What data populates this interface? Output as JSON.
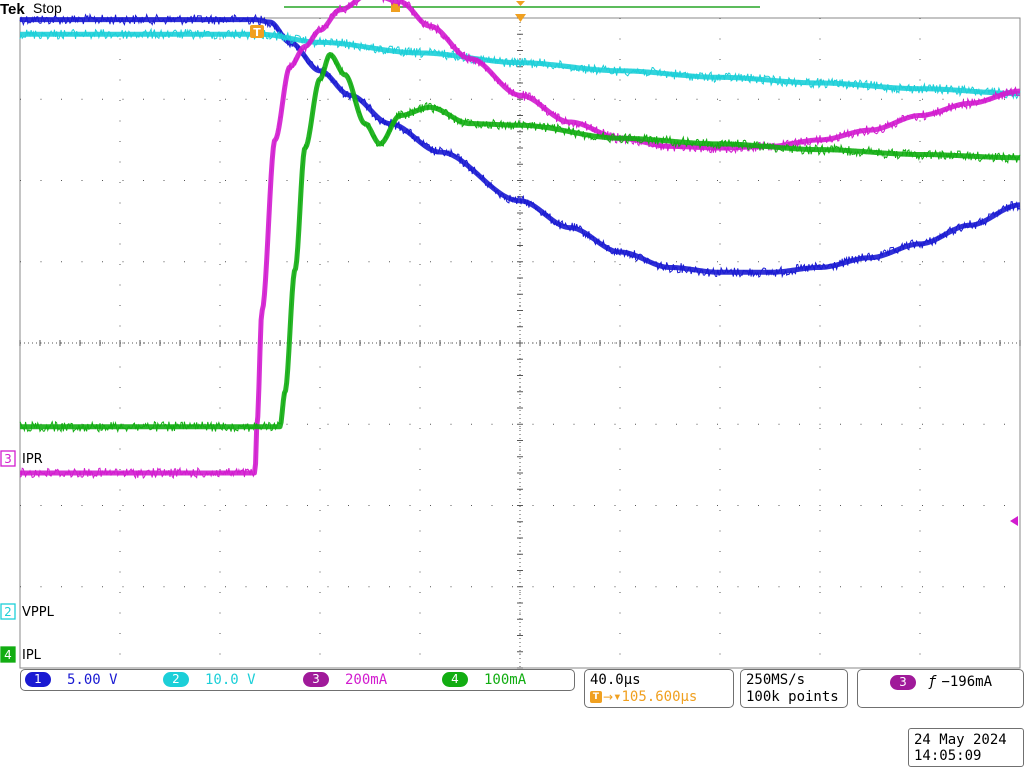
{
  "header": {
    "brand": "Tek",
    "status": "Stop",
    "trigger_marker": "T"
  },
  "colors": {
    "ch1": "#1a1ad2",
    "ch2": "#1ccfd8",
    "ch3": "#d21ccf",
    "ch4": "#12ad12",
    "orange": "#f0a020",
    "grid": "#555555",
    "cursor_line": "#27a527"
  },
  "channel_markers": {
    "ch3": {
      "num": "3",
      "name": "IPR"
    },
    "ch2": {
      "num": "2",
      "name": "VPPL"
    },
    "ch4": {
      "num": "4",
      "name": "IPL"
    }
  },
  "status_bar": {
    "ch1": {
      "num": "1",
      "scale": "5.00 V"
    },
    "ch2": {
      "num": "2",
      "scale": "10.0 V"
    },
    "ch3": {
      "num": "3",
      "scale": "200mA"
    },
    "ch4": {
      "num": "4",
      "scale": "100mA"
    },
    "timebase": "40.0µs",
    "trigger_position": "▾105.600µs",
    "sample_rate": "250MS/s",
    "record_length": "100k points",
    "trigger_source": "3",
    "trigger_level": "−196mA"
  },
  "datetime": {
    "date": "24 May 2024",
    "time": "14:05:09"
  },
  "chart_data": {
    "type": "line",
    "x_divisions": 10,
    "y_divisions": 8,
    "x_unit": "µs per division: 40.0",
    "series": [
      {
        "channel": 1,
        "color": "#1a1ad2",
        "x": [
          0,
          2.35,
          2.5,
          2.7,
          3,
          3.3,
          3.7,
          4.2,
          5,
          5.5,
          6,
          6.5,
          7,
          7.5,
          8,
          8.5,
          9,
          9.5,
          10
        ],
        "y": [
          3.98,
          3.98,
          3.95,
          3.7,
          3.35,
          3.05,
          2.7,
          2.35,
          1.75,
          1.42,
          1.12,
          0.93,
          0.87,
          0.87,
          0.93,
          1.05,
          1.22,
          1.45,
          1.7
        ]
      },
      {
        "channel": 2,
        "color": "#1ccfd8",
        "x": [
          0,
          2.4,
          3,
          4,
          5,
          6,
          7,
          8,
          9,
          10
        ],
        "y": [
          3.8,
          3.8,
          3.7,
          3.57,
          3.45,
          3.35,
          3.27,
          3.2,
          3.13,
          3.07
        ]
      },
      {
        "channel": 3,
        "color": "#d21ccf",
        "x": [
          0,
          2.35,
          2.37,
          2.42,
          2.55,
          2.7,
          2.85,
          3.0,
          3.2,
          3.5,
          3.8,
          4.1,
          4.5,
          5,
          5.5,
          6,
          6.5,
          7,
          7.5,
          8,
          8.5,
          9,
          9.5,
          10
        ],
        "y": [
          -1.6,
          -1.6,
          -1.0,
          0.4,
          2.5,
          3.4,
          3.65,
          3.85,
          4.1,
          4.3,
          4.2,
          3.9,
          3.5,
          3.05,
          2.72,
          2.52,
          2.42,
          2.4,
          2.42,
          2.5,
          2.62,
          2.8,
          2.95,
          3.1
        ]
      },
      {
        "channel": 4,
        "color": "#12ad12",
        "x": [
          0,
          2.6,
          2.65,
          2.75,
          2.85,
          3.0,
          3.1,
          3.25,
          3.45,
          3.6,
          3.8,
          4.1,
          4.5,
          5,
          6,
          7,
          8,
          9,
          10
        ],
        "y": [
          -1.03,
          -1.03,
          -0.6,
          0.9,
          2.4,
          3.25,
          3.55,
          3.3,
          2.7,
          2.45,
          2.8,
          2.9,
          2.7,
          2.68,
          2.52,
          2.45,
          2.38,
          2.32,
          2.28
        ]
      }
    ]
  }
}
